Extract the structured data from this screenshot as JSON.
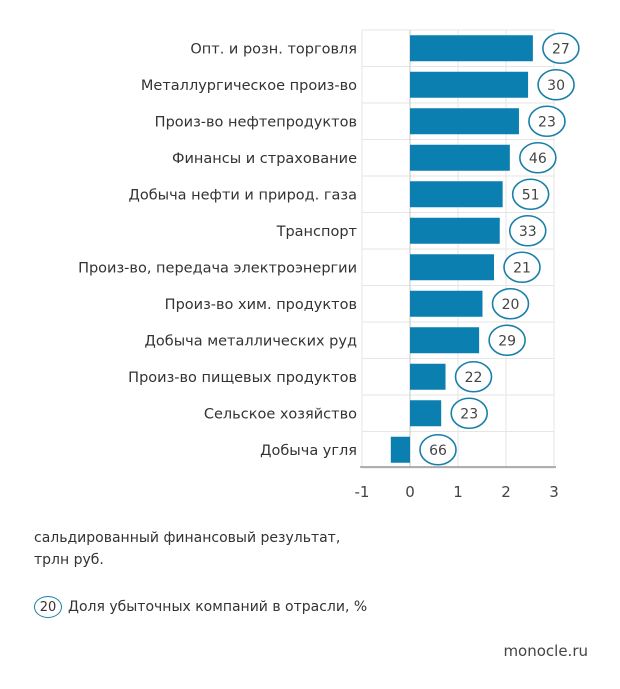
{
  "chart_data": {
    "type": "bar",
    "orientation": "horizontal",
    "categories": [
      "Опт. и розн. торговля",
      "Металлургическое произ-во",
      "Произ-во нефтепродуктов",
      "Финансы и страхование",
      "Добыча нефти и природ. газа",
      "Транспорт",
      "Произ-во, передача электроэнергии",
      "Произ-во хим. продуктов",
      "Добыча металлических руд",
      "Произ-во пищевых продуктов",
      "Сельское хозяйство",
      "Добыча угля"
    ],
    "values": [
      2.56,
      2.46,
      2.27,
      2.08,
      1.93,
      1.87,
      1.75,
      1.51,
      1.44,
      0.74,
      0.65,
      -0.4
    ],
    "loss_share_percent": [
      27,
      30,
      23,
      46,
      51,
      33,
      21,
      20,
      29,
      22,
      23,
      66
    ],
    "xlim": [
      -1,
      3
    ],
    "xticks": [
      "-1",
      "0",
      "1",
      "2",
      "3"
    ],
    "grid": true,
    "bar_color": "#0a7fb0",
    "circle_color": "#1a7fa8",
    "xlabel": "сальдированный финансовый результат, трлн руб."
  },
  "notes": {
    "xlabel_line1": "сальдированный финансовый результат,",
    "xlabel_line2": "трлн руб."
  },
  "legend": {
    "sample": "20",
    "label": "Доля убыточных компаний в отрасли, %"
  },
  "source": "monocle.ru"
}
